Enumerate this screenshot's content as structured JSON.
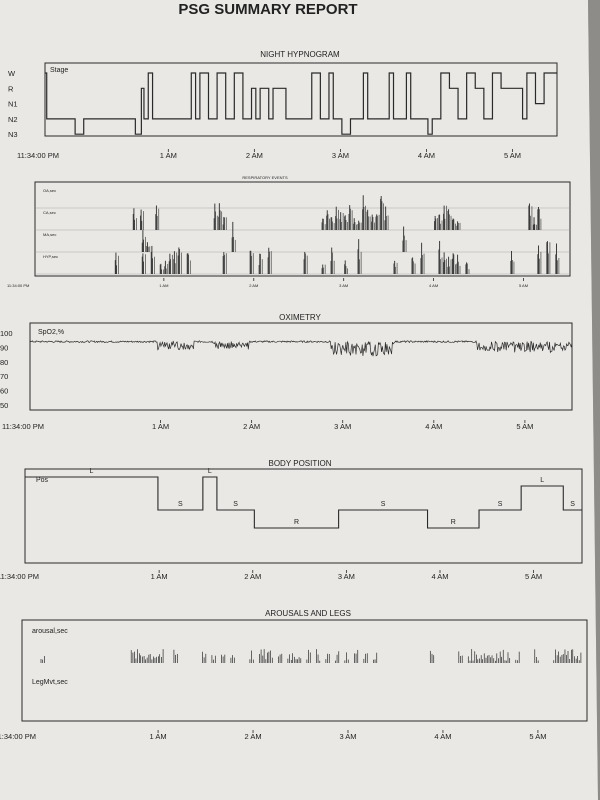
{
  "report_title": "PSG SUMMARY REPORT",
  "colors": {
    "paper": "#e9e8e4",
    "ink": "#2a2a2a",
    "grid": "#9a9a9a",
    "background": "#b9b8b5"
  },
  "chart_data": [
    {
      "id": "hypnogram",
      "type": "line",
      "title": "NIGHT HYPNOGRAM",
      "series_label": "Stage",
      "y_categories": [
        "W",
        "R",
        "N1",
        "N2",
        "N3"
      ],
      "x_tick_labels": [
        "11:34:00 PM",
        "1 AM",
        "2 AM",
        "3 AM",
        "4 AM",
        "5 AM"
      ],
      "x_ticks_hours": [
        0,
        1.433,
        2.433,
        3.433,
        4.433,
        5.433
      ],
      "xlim_hours": [
        0,
        5.95
      ],
      "steps": [
        [
          0,
          0
        ],
        [
          0.02,
          3
        ],
        [
          0.35,
          4
        ],
        [
          0.45,
          3
        ],
        [
          0.95,
          3
        ],
        [
          1.05,
          4
        ],
        [
          1.12,
          1
        ],
        [
          1.15,
          3
        ],
        [
          1.2,
          0
        ],
        [
          1.25,
          3
        ],
        [
          1.6,
          3
        ],
        [
          1.7,
          0
        ],
        [
          1.75,
          3
        ],
        [
          1.8,
          0
        ],
        [
          1.9,
          3
        ],
        [
          2.0,
          0
        ],
        [
          2.1,
          3
        ],
        [
          2.2,
          0
        ],
        [
          2.3,
          3
        ],
        [
          2.4,
          1
        ],
        [
          2.45,
          3
        ],
        [
          2.5,
          1
        ],
        [
          2.6,
          3
        ],
        [
          2.65,
          1
        ],
        [
          2.8,
          3
        ],
        [
          3.0,
          3
        ],
        [
          3.1,
          0
        ],
        [
          3.2,
          3
        ],
        [
          3.3,
          0
        ],
        [
          3.35,
          3
        ],
        [
          3.45,
          4
        ],
        [
          3.55,
          3
        ],
        [
          3.7,
          0
        ],
        [
          3.75,
          3
        ],
        [
          3.9,
          3
        ],
        [
          4.0,
          0
        ],
        [
          4.05,
          3
        ],
        [
          4.2,
          0
        ],
        [
          4.25,
          3
        ],
        [
          4.45,
          4
        ],
        [
          4.5,
          3
        ],
        [
          4.6,
          0
        ],
        [
          4.7,
          1
        ],
        [
          4.8,
          3
        ],
        [
          4.9,
          0
        ],
        [
          5.0,
          1
        ],
        [
          5.1,
          3
        ],
        [
          5.2,
          0
        ],
        [
          5.3,
          1
        ],
        [
          5.5,
          1
        ],
        [
          5.55,
          3
        ],
        [
          5.6,
          0
        ],
        [
          5.7,
          2
        ],
        [
          5.8,
          0
        ],
        [
          5.95,
          0
        ]
      ]
    },
    {
      "id": "respiratory",
      "type": "bar",
      "title": "RESPIRATORY EVENTS",
      "lane_labels": [
        "OA,sec",
        "CA,sec",
        "MA,sec",
        "HYP,sec"
      ],
      "x_tick_labels": [
        "11:34:00 PM",
        "1 AM",
        "2 AM",
        "3 AM",
        "4 AM",
        "5 AM"
      ],
      "xlim_hours": [
        0,
        5.95
      ],
      "events": [
        {
          "lane": 1,
          "t": [
            1.1,
            1.18,
            1.35,
            2.0,
            2.05,
            2.1,
            3.2,
            3.25,
            3.3,
            3.35,
            3.4,
            3.45,
            3.5,
            3.55,
            3.6,
            3.65,
            3.7,
            3.75,
            3.8,
            3.85,
            3.9,
            4.45,
            4.5,
            4.55,
            4.6,
            4.65,
            4.7,
            5.5,
            5.55,
            5.6
          ]
        },
        {
          "lane": 2,
          "t": [
            1.2,
            1.25,
            2.2,
            4.1
          ]
        },
        {
          "lane": 3,
          "t": [
            0.9,
            1.2,
            1.3,
            1.4,
            1.45,
            1.5,
            1.55,
            1.6,
            1.7,
            2.1,
            2.4,
            2.5,
            2.6,
            3.0,
            3.2,
            3.3,
            3.45,
            3.6,
            4.0,
            4.2,
            4.3,
            4.5,
            4.55,
            4.6,
            4.65,
            4.7,
            4.8,
            5.3,
            5.6,
            5.7,
            5.8
          ]
        }
      ]
    },
    {
      "id": "oximetry",
      "type": "line",
      "title": "OXIMETRY",
      "series_label": "SpO2,%",
      "y_tick_labels": [
        "100",
        "90",
        "80",
        "70",
        "60",
        "50"
      ],
      "ylim": [
        50,
        100
      ],
      "x_tick_labels": [
        "11:34:00 PM",
        "1 AM",
        "2 AM",
        "3 AM",
        "4 AM",
        "5 AM"
      ],
      "xlim_hours": [
        0,
        5.95
      ],
      "baseline": 94,
      "desaturation_windows": [
        [
          1.4,
          1.8,
          6
        ],
        [
          2.0,
          2.4,
          5
        ],
        [
          3.3,
          4.0,
          10
        ],
        [
          4.9,
          5.95,
          7
        ]
      ]
    },
    {
      "id": "body_position",
      "type": "line",
      "title": "BODY POSITION",
      "series_label": "Pos",
      "y_categories": [
        "L",
        "S",
        "R"
      ],
      "x_tick_labels": [
        "11:34:00 PM",
        "1 AM",
        "2 AM",
        "3 AM",
        "4 AM",
        "5 AM"
      ],
      "xlim_hours": [
        0,
        5.95
      ],
      "segments": [
        {
          "start": 0.0,
          "end": 1.42,
          "level": 0.0,
          "label": "L"
        },
        {
          "start": 1.42,
          "end": 1.9,
          "level": 0.55,
          "label": "S"
        },
        {
          "start": 1.9,
          "end": 2.05,
          "level": 0.0,
          "label": "L"
        },
        {
          "start": 2.05,
          "end": 2.45,
          "level": 0.55,
          "label": "S"
        },
        {
          "start": 2.45,
          "end": 3.35,
          "level": 0.85,
          "label": "R"
        },
        {
          "start": 3.35,
          "end": 4.3,
          "level": 0.55,
          "label": "S"
        },
        {
          "start": 4.3,
          "end": 4.85,
          "level": 0.85,
          "label": "R"
        },
        {
          "start": 4.85,
          "end": 5.3,
          "level": 0.55,
          "label": "S"
        },
        {
          "start": 5.3,
          "end": 5.75,
          "level": 0.15,
          "label": "L"
        },
        {
          "start": 5.75,
          "end": 5.95,
          "level": 0.55,
          "label": "S"
        }
      ]
    },
    {
      "id": "arousals_legs",
      "type": "bar",
      "title": "AROUSALS AND LEGS",
      "lane_labels": [
        "arousal,sec",
        "LegMvt,sec"
      ],
      "x_tick_labels": [
        "11:34:00 PM",
        "1 AM",
        "2 AM",
        "3 AM",
        "4 AM",
        "5 AM"
      ],
      "xlim_hours": [
        0,
        5.95
      ],
      "arousal_times": [
        0.2,
        1.15,
        1.2,
        1.25,
        1.3,
        1.35,
        1.4,
        1.45,
        1.6,
        1.9,
        2.0,
        2.1,
        2.2,
        2.4,
        2.5,
        2.55,
        2.6,
        2.7,
        2.8,
        2.85,
        2.9,
        3.0,
        3.1,
        3.2,
        3.3,
        3.4,
        3.5,
        3.6,
        3.7,
        4.3,
        4.6,
        4.7,
        4.75,
        4.8,
        4.85,
        4.9,
        4.95,
        5.0,
        5.05,
        5.1,
        5.2,
        5.4,
        5.6,
        5.65,
        5.7,
        5.75,
        5.8,
        5.85
      ]
    }
  ]
}
